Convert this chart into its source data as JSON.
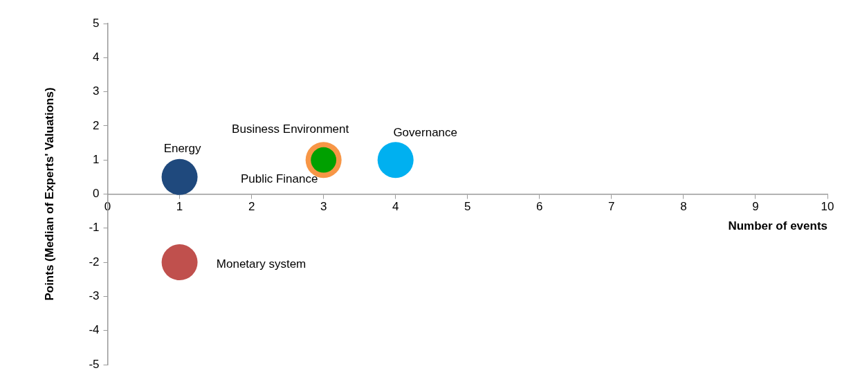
{
  "chart_data": {
    "type": "bubble",
    "xlabel": "Number of events",
    "ylabel": "Points (Median of Experts' Valuations)",
    "xlim": [
      0,
      10
    ],
    "xticks": [
      0,
      1,
      2,
      3,
      4,
      5,
      6,
      7,
      8,
      9,
      10
    ],
    "ylim": [
      -5,
      5
    ],
    "yticks": [
      -5,
      -4,
      -3,
      -2,
      -1,
      0,
      1,
      2,
      3,
      4,
      5
    ],
    "grid": false,
    "legend": false,
    "series": [
      {
        "name": "Energy",
        "color": "#1f497d",
        "x": [
          1
        ],
        "values": [
          0.5
        ],
        "sizes": [
          1
        ]
      },
      {
        "name": "Business Environment",
        "color": "#f79646",
        "x": [
          3
        ],
        "values": [
          1
        ],
        "sizes": [
          1
        ]
      },
      {
        "name": "Public Finance",
        "color": "#00a000",
        "x": [
          3
        ],
        "values": [
          1
        ],
        "sizes": [
          0.5
        ]
      },
      {
        "name": "Governance",
        "color": "#00b0f0",
        "x": [
          4
        ],
        "values": [
          1
        ],
        "sizes": [
          1
        ]
      },
      {
        "name": "Monetary system",
        "color": "#c0504d",
        "x": [
          1
        ],
        "values": [
          -2
        ],
        "sizes": [
          1
        ]
      }
    ]
  }
}
